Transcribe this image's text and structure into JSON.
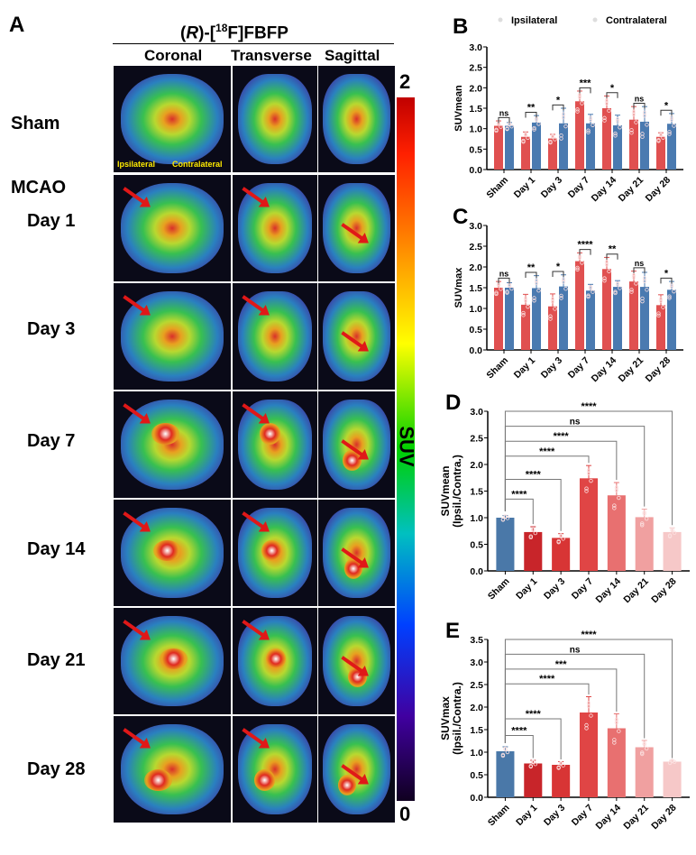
{
  "panel_a": {
    "label": "A",
    "title_prefix": "(",
    "title_italic": "R",
    "title_mid": ")-[",
    "title_sup": "18",
    "title_suffix": "F]FBFP",
    "columns": [
      "Coronal",
      "Transverse",
      "Sagittal"
    ],
    "group_label": "MCAO",
    "rows": [
      "Sham",
      "Day 1",
      "Day 3",
      "Day 7",
      "Day 14",
      "Day 21",
      "Day 28"
    ],
    "side_left": "Ipsilateral",
    "side_right": "Contralateral",
    "colorbar": {
      "label": "SUV",
      "max": "2",
      "min": "0"
    },
    "arrow_color": "#e01818"
  },
  "chart_data": [
    {
      "panel": "B",
      "type": "bar",
      "ylabel": "SUVmean",
      "ylim": [
        0,
        3.0
      ],
      "yticks": [
        "0.0",
        "0.5",
        "1.0",
        "1.5",
        "2.0",
        "2.5",
        "3.0"
      ],
      "categories": [
        "Sham",
        "Day 1",
        "Day 3",
        "Day 7",
        "Day 14",
        "Day 21",
        "Day 28"
      ],
      "series": [
        {
          "name": "Ipsilateral",
          "color": "#e05050",
          "values": [
            1.07,
            0.8,
            0.76,
            1.67,
            1.5,
            1.22,
            0.8
          ],
          "error": [
            0.12,
            0.12,
            0.1,
            0.25,
            0.3,
            0.32,
            0.1
          ]
        },
        {
          "name": "Contralateral",
          "color": "#4a7ab0",
          "values": [
            1.07,
            1.15,
            1.13,
            1.13,
            1.08,
            1.17,
            1.12
          ],
          "error": [
            0.08,
            0.17,
            0.37,
            0.22,
            0.25,
            0.37,
            0.25
          ]
        }
      ],
      "significance": [
        "ns",
        "**",
        "*",
        "***",
        "*",
        "ns",
        "*"
      ]
    },
    {
      "panel": "C",
      "type": "bar",
      "ylabel": "SUVmax",
      "ylim": [
        0,
        3.0
      ],
      "yticks": [
        "0.0",
        "0.5",
        "1.0",
        "1.5",
        "2.0",
        "2.5",
        "3.0"
      ],
      "categories": [
        "Sham",
        "Day 1",
        "Day 3",
        "Day 7",
        "Day 14",
        "Day 21",
        "Day 28"
      ],
      "series": [
        {
          "name": "Ipsilateral",
          "color": "#e05050",
          "values": [
            1.5,
            1.09,
            1.05,
            2.14,
            1.95,
            1.65,
            1.08
          ],
          "error": [
            0.15,
            0.25,
            0.3,
            0.2,
            0.28,
            0.25,
            0.25
          ]
        },
        {
          "name": "Contralateral",
          "color": "#4a7ab0",
          "values": [
            1.5,
            1.49,
            1.53,
            1.43,
            1.52,
            1.52,
            1.45
          ],
          "error": [
            0.12,
            0.3,
            0.28,
            0.15,
            0.15,
            0.35,
            0.2
          ]
        }
      ],
      "significance": [
        "ns",
        "**",
        "*",
        "****",
        "**",
        "ns",
        "*"
      ]
    },
    {
      "panel": "D",
      "type": "bar",
      "ylabel": "SUVmean",
      "ylabel2": "(Ipsil./Contra.)",
      "ylim": [
        0,
        3.0
      ],
      "yticks": [
        "0.0",
        "0.5",
        "1.0",
        "1.5",
        "2.0",
        "2.5",
        "3.0"
      ],
      "categories": [
        "Sham",
        "Day 1",
        "Day 3",
        "Day 7",
        "Day 14",
        "Day 21",
        "Day 28"
      ],
      "colors": [
        "#4a78a8",
        "#c8252a",
        "#d83535",
        "#e04545",
        "#e87070",
        "#f0a0a0",
        "#f6c8c8"
      ],
      "values": [
        1.0,
        0.73,
        0.62,
        1.74,
        1.42,
        1.01,
        0.73
      ],
      "error": [
        0.04,
        0.1,
        0.08,
        0.24,
        0.24,
        0.15,
        0.08
      ],
      "comparisons": [
        {
          "vs": "Day 1",
          "label": "****"
        },
        {
          "vs": "Day 3",
          "label": "****"
        },
        {
          "vs": "Day 7",
          "label": "****"
        },
        {
          "vs": "Day 14",
          "label": "****"
        },
        {
          "vs": "Day 21",
          "label": "ns"
        },
        {
          "vs": "Day 28",
          "label": "****"
        }
      ]
    },
    {
      "panel": "E",
      "type": "bar",
      "ylabel": "SUVmax",
      "ylabel2": "(Ipsil./Contra.)",
      "ylim": [
        0,
        3.5
      ],
      "yticks": [
        "0.0",
        "0.5",
        "1.0",
        "1.5",
        "2.0",
        "2.5",
        "3.0",
        "3.5"
      ],
      "categories": [
        "Sham",
        "Day 1",
        "Day 3",
        "Day 7",
        "Day 14",
        "Day 21",
        "Day 28"
      ],
      "colors": [
        "#4a78a8",
        "#c8252a",
        "#d83535",
        "#e04545",
        "#e87070",
        "#f0a0a0",
        "#f6c8c8"
      ],
      "values": [
        1.02,
        0.75,
        0.72,
        1.88,
        1.53,
        1.11,
        0.79
      ],
      "error": [
        0.1,
        0.07,
        0.07,
        0.35,
        0.32,
        0.15,
        0.03
      ],
      "comparisons": [
        {
          "vs": "Day 1",
          "label": "****"
        },
        {
          "vs": "Day 3",
          "label": "****"
        },
        {
          "vs": "Day 7",
          "label": "****"
        },
        {
          "vs": "Day 14",
          "label": "***"
        },
        {
          "vs": "Day 21",
          "label": "ns"
        },
        {
          "vs": "Day 28",
          "label": "****"
        }
      ]
    }
  ]
}
